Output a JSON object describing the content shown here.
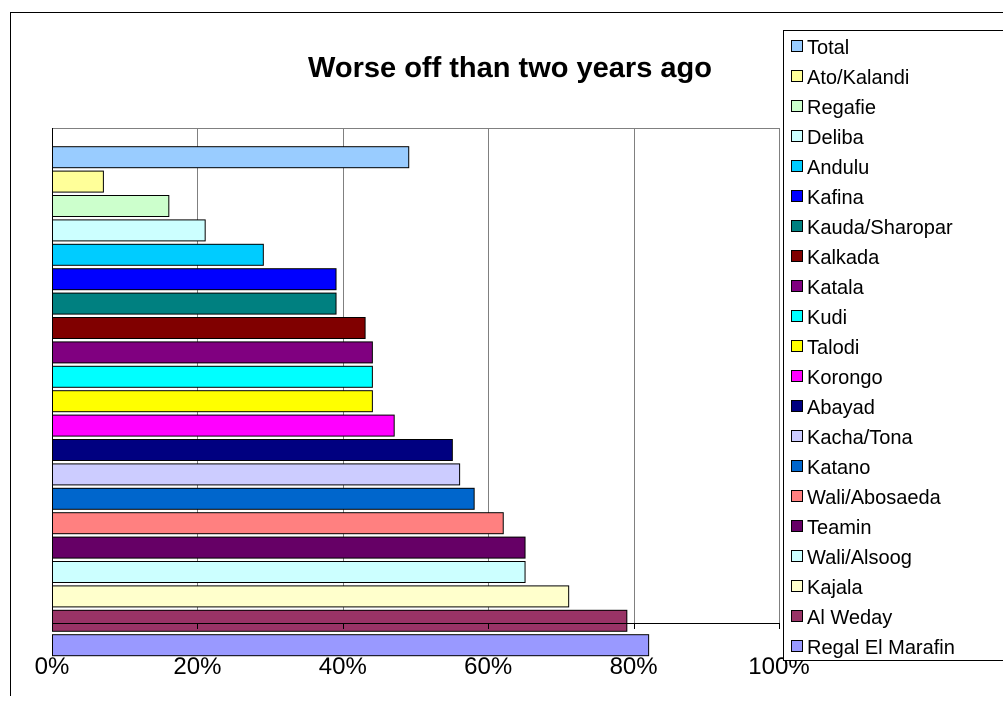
{
  "chart_data": {
    "type": "bar",
    "orientation": "horizontal",
    "title": "Worse off than two years ago",
    "xlabel": "",
    "ylabel": "",
    "xlim": [
      0,
      100
    ],
    "x_ticks": [
      "0%",
      "20%",
      "40%",
      "60%",
      "80%",
      "100%"
    ],
    "grid": true,
    "legend_position": "right",
    "categories": [
      "Total",
      "Ato/Kalandi",
      "Regafie",
      "Deliba",
      "Andulu",
      "Kafina",
      "Kauda/Sharoparn",
      "Kalkada",
      "Katala",
      "Kudi",
      "Talodi",
      "Korongo",
      "Abayad",
      "Kacha/Tona",
      "Katano",
      "Wali/Abosaeda",
      "Teamin",
      "Wali/Alsoog",
      "Kajala",
      "Al Weday",
      "Regal El Marafin"
    ],
    "legend_labels": [
      "Total",
      "Ato/Kalandi",
      "Regafie",
      "Deliba",
      "Andulu",
      "Kafina",
      "Kauda/Sharopar",
      "Kalkada",
      "Katala",
      "Kudi",
      "Talodi",
      "Korongo",
      "Abayad",
      "Kacha/Tona",
      "Katano",
      "Wali/Abosaeda",
      "Teamin",
      "Wali/Alsoog",
      "Kajala",
      "Al Weday",
      "Regal El Marafin"
    ],
    "values": [
      49,
      7,
      16,
      21,
      29,
      39,
      39,
      43,
      44,
      44,
      44,
      47,
      55,
      56,
      58,
      62,
      65,
      65,
      71,
      79,
      82
    ],
    "colors": [
      "#99CCFF",
      "#FFFF99",
      "#CCFFCC",
      "#CCFFFF",
      "#00CCFF",
      "#0000FF",
      "#008080",
      "#800000",
      "#800080",
      "#00FFFF",
      "#FFFF00",
      "#FF00FF",
      "#000080",
      "#CCCCFF",
      "#0066CC",
      "#FF8080",
      "#660066",
      "#CCFFFF",
      "#FFFFCC",
      "#993366",
      "#9999FF"
    ]
  }
}
